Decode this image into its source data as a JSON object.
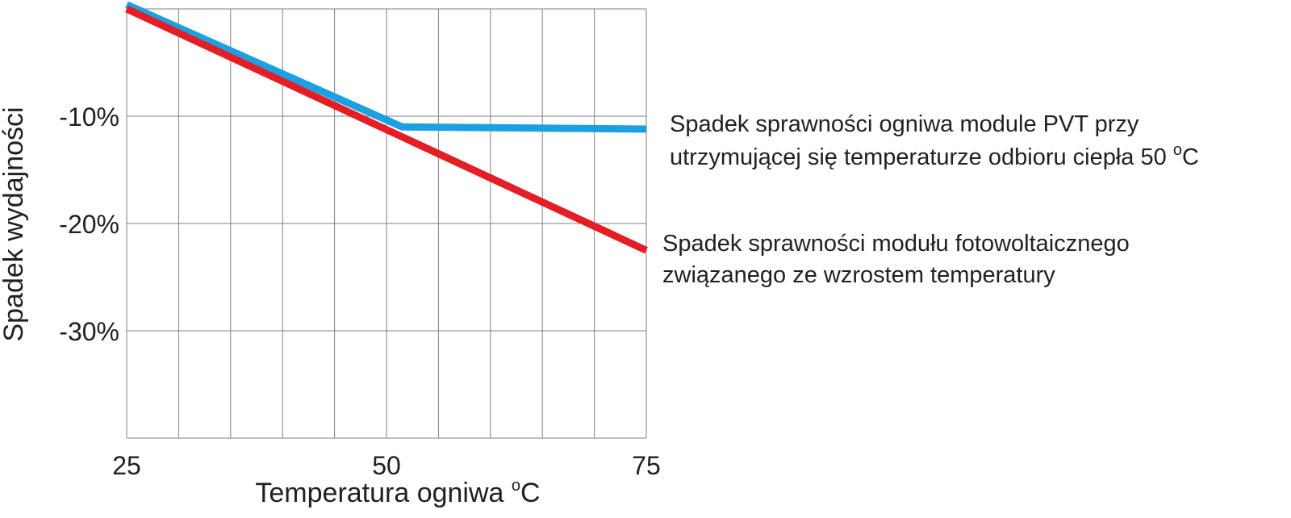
{
  "chart_data": {
    "type": "line",
    "xlabel": "Temperatura ogniwa",
    "xlabel_unit": "C",
    "xlabel_unit_sup": "o",
    "ylabel": "Spadek wydajności",
    "x_ticks": [
      25,
      50,
      75
    ],
    "y_ticks": [
      {
        "value": -10,
        "label": "-10%"
      },
      {
        "value": -20,
        "label": "-20%"
      },
      {
        "value": -30,
        "label": "-30%"
      }
    ],
    "xlim": [
      25,
      75
    ],
    "ylim": [
      -40,
      0
    ],
    "grid": true,
    "series": [
      {
        "name_lines": [
          "Spadek sprawności ogniwa module PVT przy",
          "utrzymującej się temperaturze odbioru ciepła 50 "
        ],
        "name_unit": "C",
        "name_unit_sup": "o",
        "color": "#1ba1e2",
        "x": [
          25,
          51.5,
          75
        ],
        "y": [
          0.4,
          -11.0,
          -11.2
        ]
      },
      {
        "name_lines": [
          "Spadek sprawności modułu fotowoltaicznego",
          "związanego ze wzrostem temperatury"
        ],
        "color": "#e31e24",
        "x": [
          25,
          75
        ],
        "y": [
          0,
          -22.5
        ]
      }
    ]
  }
}
